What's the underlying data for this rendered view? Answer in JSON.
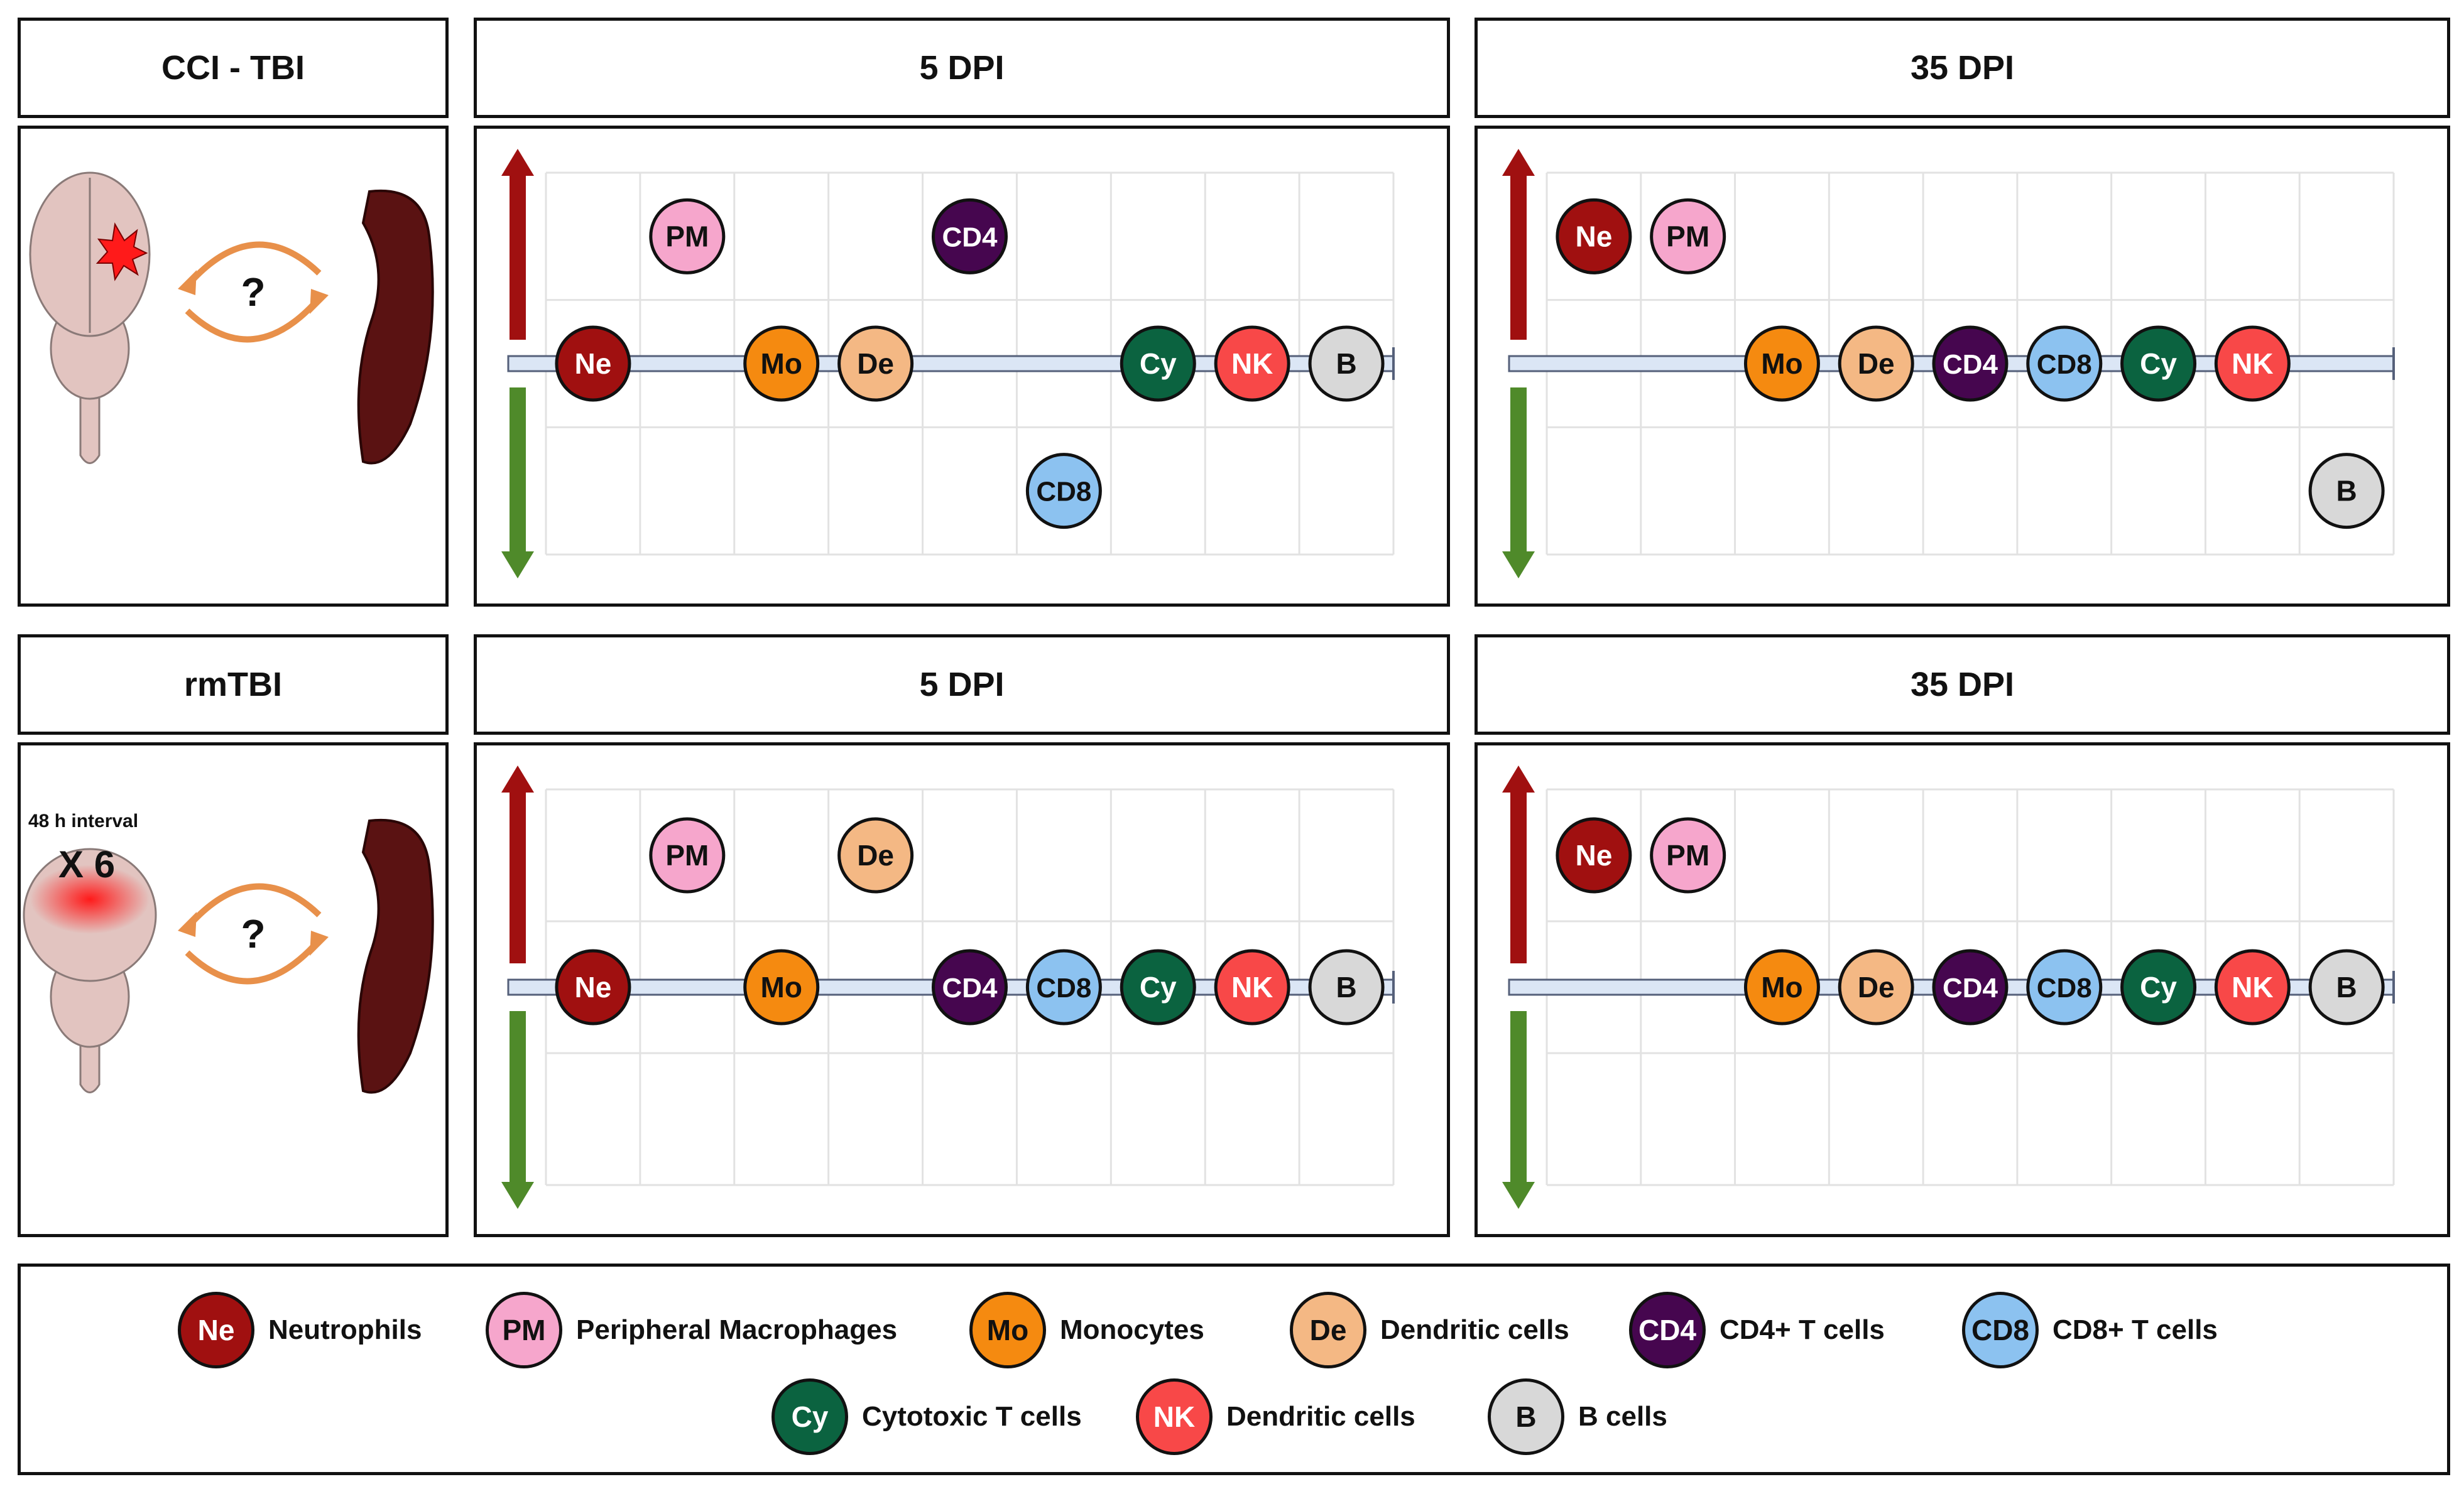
{
  "rows": [
    {
      "condition": "CCI - TBI",
      "interval_note": "",
      "repeat": "",
      "brain_style": "focal",
      "question": "?",
      "panels": [
        {
          "title": "5 DPI",
          "cells": [
            {
              "code": "PM",
              "col": 1,
              "level": "up"
            },
            {
              "code": "CD4",
              "col": 4,
              "level": "up"
            },
            {
              "code": "Ne",
              "col": 0,
              "level": "baseline"
            },
            {
              "code": "Mo",
              "col": 2,
              "level": "baseline"
            },
            {
              "code": "De",
              "col": 3,
              "level": "baseline"
            },
            {
              "code": "Cy",
              "col": 6,
              "level": "baseline"
            },
            {
              "code": "NK",
              "col": 7,
              "level": "baseline"
            },
            {
              "code": "B",
              "col": 8,
              "level": "baseline"
            },
            {
              "code": "CD8",
              "col": 5,
              "level": "down"
            }
          ]
        },
        {
          "title": "35 DPI",
          "cells": [
            {
              "code": "Ne",
              "col": 0,
              "level": "up"
            },
            {
              "code": "PM",
              "col": 1,
              "level": "up"
            },
            {
              "code": "Mo",
              "col": 2,
              "level": "baseline"
            },
            {
              "code": "De",
              "col": 3,
              "level": "baseline"
            },
            {
              "code": "CD4",
              "col": 4,
              "level": "baseline"
            },
            {
              "code": "CD8",
              "col": 5,
              "level": "baseline"
            },
            {
              "code": "Cy",
              "col": 6,
              "level": "baseline"
            },
            {
              "code": "NK",
              "col": 7,
              "level": "baseline"
            },
            {
              "code": "B",
              "col": 8,
              "level": "down"
            }
          ]
        }
      ]
    },
    {
      "condition": "rmTBI",
      "interval_note": "48 h interval",
      "repeat": "X 6",
      "brain_style": "diffuse",
      "question": "?",
      "panels": [
        {
          "title": "5 DPI",
          "cells": [
            {
              "code": "PM",
              "col": 1,
              "level": "up"
            },
            {
              "code": "De",
              "col": 3,
              "level": "up"
            },
            {
              "code": "Ne",
              "col": 0,
              "level": "baseline"
            },
            {
              "code": "Mo",
              "col": 2,
              "level": "baseline"
            },
            {
              "code": "CD4",
              "col": 4,
              "level": "baseline"
            },
            {
              "code": "CD8",
              "col": 5,
              "level": "baseline"
            },
            {
              "code": "Cy",
              "col": 6,
              "level": "baseline"
            },
            {
              "code": "NK",
              "col": 7,
              "level": "baseline"
            },
            {
              "code": "B",
              "col": 8,
              "level": "baseline"
            }
          ]
        },
        {
          "title": "35 DPI",
          "cells": [
            {
              "code": "Ne",
              "col": 0,
              "level": "up"
            },
            {
              "code": "PM",
              "col": 1,
              "level": "up"
            },
            {
              "code": "Mo",
              "col": 2,
              "level": "baseline"
            },
            {
              "code": "De",
              "col": 3,
              "level": "baseline"
            },
            {
              "code": "CD4",
              "col": 4,
              "level": "baseline"
            },
            {
              "code": "CD8",
              "col": 5,
              "level": "baseline"
            },
            {
              "code": "Cy",
              "col": 6,
              "level": "baseline"
            },
            {
              "code": "NK",
              "col": 7,
              "level": "baseline"
            },
            {
              "code": "B",
              "col": 8,
              "level": "baseline"
            }
          ]
        }
      ]
    }
  ],
  "cell_types": {
    "Ne": {
      "fill": "#a01010",
      "text_color": "#ffffff"
    },
    "PM": {
      "fill": "#f6a6cc",
      "text_color": "#111111"
    },
    "Mo": {
      "fill": "#f58a10",
      "text_color": "#111111"
    },
    "De": {
      "fill": "#f4b884",
      "text_color": "#111111"
    },
    "CD4": {
      "fill": "#46064f",
      "text_color": "#ffffff"
    },
    "CD8": {
      "fill": "#8cc2f0",
      "text_color": "#111111"
    },
    "Cy": {
      "fill": "#0b6340",
      "text_color": "#ffffff"
    },
    "NK": {
      "fill": "#f84848",
      "text_color": "#ffffff"
    },
    "B": {
      "fill": "#d8d8d8",
      "text_color": "#111111"
    }
  },
  "legend": [
    {
      "code": "Ne",
      "label": "Neutrophils"
    },
    {
      "code": "PM",
      "label": "Peripheral Macrophages"
    },
    {
      "code": "Mo",
      "label": "Monocytes"
    },
    {
      "code": "De",
      "label": "Dendritic cells"
    },
    {
      "code": "CD4",
      "label": "CD4+ T cells"
    },
    {
      "code": "CD8",
      "label": "CD8+ T cells"
    },
    {
      "code": "Cy",
      "label": "Cytotoxic T cells"
    },
    {
      "code": "NK",
      "label": "Dendritic cells"
    },
    {
      "code": "B",
      "label": "B cells"
    }
  ],
  "colors": {
    "up_arrow": "#a01010",
    "down_arrow": "#4f8a2a",
    "cycle_arrow": "#e8904a",
    "spleen": "#5a1212",
    "brain": "#e2c4c0",
    "lesion": "#ff1a1a",
    "baseline_bar": "#dbe6f5",
    "grid": "#e2e2e2"
  }
}
